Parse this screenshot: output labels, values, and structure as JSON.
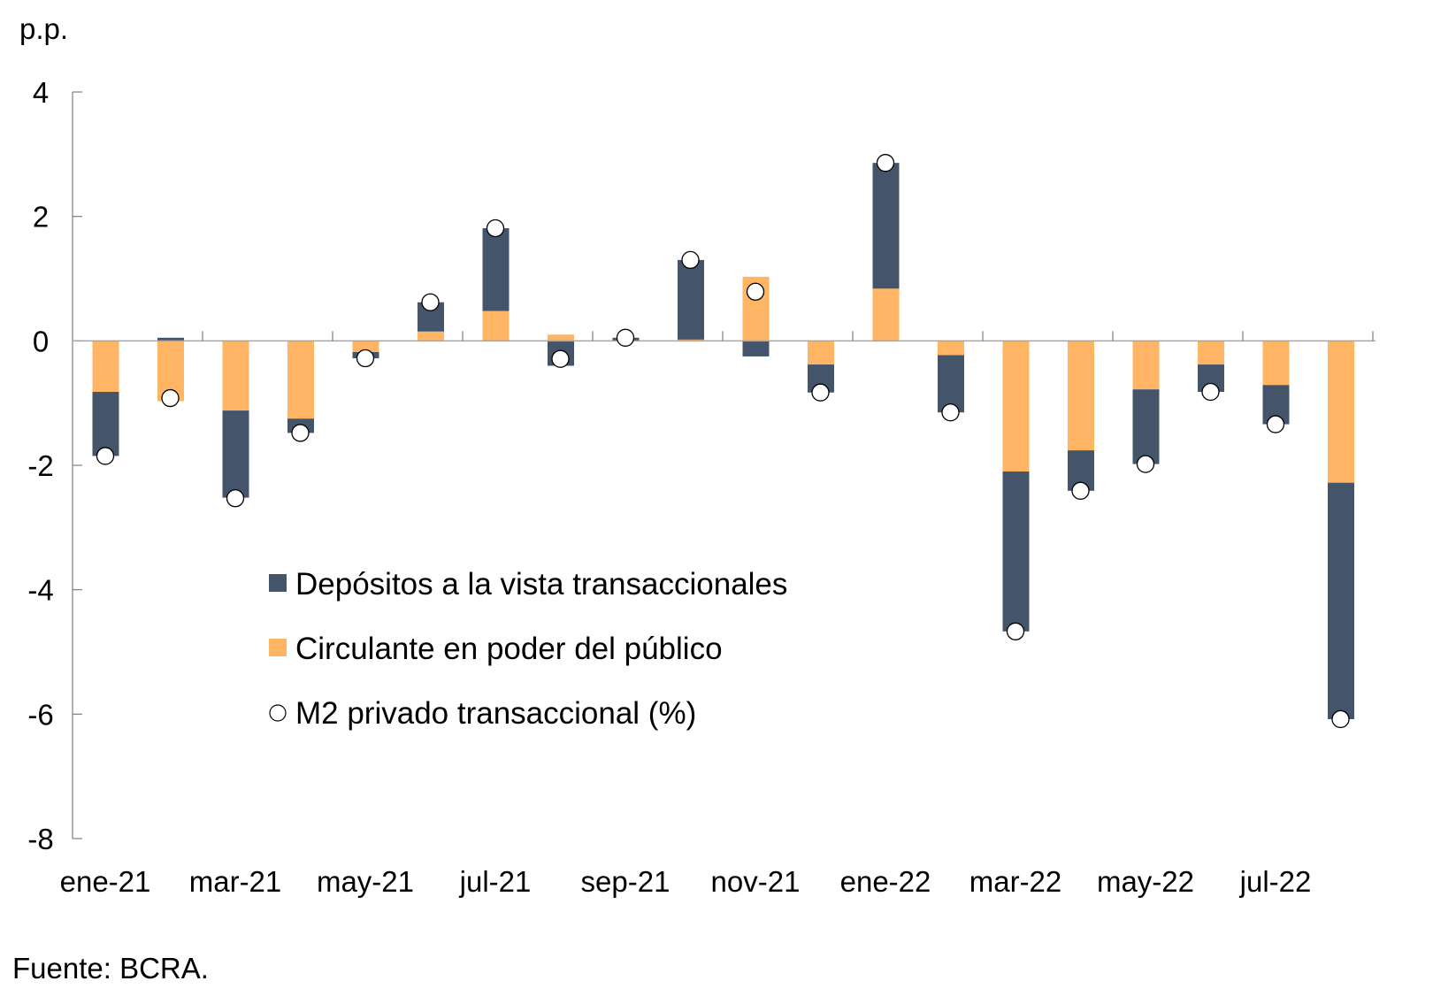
{
  "chart_data": {
    "type": "bar",
    "stacked": true,
    "title": "",
    "ylabel": "p.p.",
    "xlabel": "",
    "ylim": [
      -8,
      4
    ],
    "yticks": [
      4,
      2,
      0,
      -2,
      -4,
      -6,
      -8
    ],
    "categories": [
      "ene-21",
      "feb-21",
      "mar-21",
      "abr-21",
      "may-21",
      "jun-21",
      "jul-21",
      "ago-21",
      "sep-21",
      "oct-21",
      "nov-21",
      "dic-21",
      "ene-22",
      "feb-22",
      "mar-22",
      "abr-22",
      "may-22",
      "jun-22",
      "jul-22",
      "ago-22"
    ],
    "xtick_labels": [
      "ene-21",
      "mar-21",
      "may-21",
      "jul-21",
      "sep-21",
      "nov-21",
      "ene-22",
      "mar-22",
      "may-22",
      "jul-22"
    ],
    "series": [
      {
        "name": "Circulante en poder del público",
        "kind": "bar",
        "color": "#FFB563",
        "values": [
          -0.82,
          -0.97,
          -1.12,
          -1.25,
          -0.18,
          0.15,
          0.48,
          0.1,
          0.0,
          0.02,
          1.03,
          -0.38,
          0.84,
          -0.23,
          -2.1,
          -1.76,
          -0.78,
          -0.38,
          -0.71,
          -2.28
        ]
      },
      {
        "name": "Depósitos a la vista transaccionales",
        "kind": "bar",
        "color": "#44546A",
        "values": [
          -1.03,
          0.05,
          -1.4,
          -0.23,
          -0.1,
          0.47,
          1.33,
          -0.4,
          0.05,
          1.28,
          -0.25,
          -0.45,
          2.02,
          -0.92,
          -2.57,
          -0.65,
          -1.2,
          -0.44,
          -0.63,
          -3.8
        ]
      },
      {
        "name": "M2 privado transaccional (%)",
        "kind": "marker",
        "color": "#FFFFFF",
        "values": [
          -1.85,
          -0.92,
          -2.53,
          -1.48,
          -0.28,
          0.62,
          1.81,
          -0.29,
          0.05,
          1.3,
          0.79,
          -0.83,
          2.86,
          -1.15,
          -4.67,
          -2.41,
          -1.98,
          -0.82,
          -1.34,
          -6.08
        ]
      }
    ],
    "legend": {
      "placement": "center-left",
      "entries": [
        {
          "label": "Depósitos a la vista transaccionales",
          "symbol": "square",
          "color": "#44546A"
        },
        {
          "label": "Circulante en poder del público",
          "symbol": "square",
          "color": "#FFB563"
        },
        {
          "label": "M2 privado transaccional (%)",
          "symbol": "circle",
          "color": "#FFFFFF"
        }
      ]
    },
    "grid": false
  },
  "source_note": "Fuente: BCRA."
}
